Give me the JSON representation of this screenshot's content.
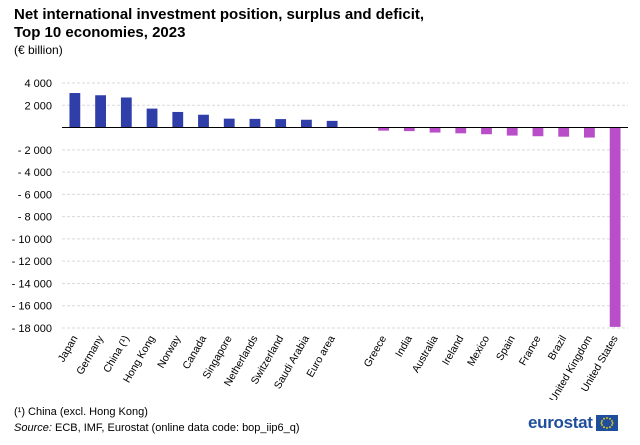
{
  "chart_data": {
    "type": "bar",
    "title_line1": "Net international investment position, surplus and deficit,",
    "title_line2": "Top 10 economies, 2023",
    "unit_label": "(€ billion)",
    "ylim": [
      -18000,
      4000
    ],
    "yticks": [
      4000,
      2000,
      0,
      -2000,
      -4000,
      -6000,
      -8000,
      -10000,
      -12000,
      -14000,
      -16000,
      -18000
    ],
    "ytick_labels": [
      "4 000",
      "2 000",
      "",
      "- 2 000",
      "- 4 000",
      "- 6 000",
      "- 8 000",
      "- 10 000",
      "- 12 000",
      "- 14 000",
      "- 16 000",
      "- 18 000"
    ],
    "series": [
      {
        "name": "Surplus",
        "color": "#2f3ea8",
        "categories": [
          "Japan",
          "Germany",
          "China (¹)",
          "Hong Kong",
          "Norway",
          "Canada",
          "Singapore",
          "Netherlands",
          "Switzerland",
          "Saudi Arabia",
          "Euro area"
        ],
        "values": [
          3100,
          2900,
          2700,
          1700,
          1400,
          1150,
          800,
          780,
          760,
          700,
          600
        ]
      },
      {
        "name": "Deficit",
        "color": "#b84fc9",
        "categories": [
          "Greece",
          "India",
          "Australia",
          "Ireland",
          "Mexico",
          "Spain",
          "France",
          "Brazil",
          "United Kingdom",
          "United States"
        ],
        "values": [
          -280,
          -320,
          -450,
          -520,
          -600,
          -720,
          -780,
          -820,
          -900,
          -17900
        ]
      }
    ]
  },
  "footnote": "(¹) China (excl. Hong Kong)",
  "source_label": "Source:",
  "source_text": " ECB, IMF, Eurostat (online data code: bop_iip6_q)",
  "logo_text": "eurostat",
  "colors": {
    "gridline": "#d9d9d9",
    "axis": "#000000",
    "logo": "#1f4e9c"
  }
}
